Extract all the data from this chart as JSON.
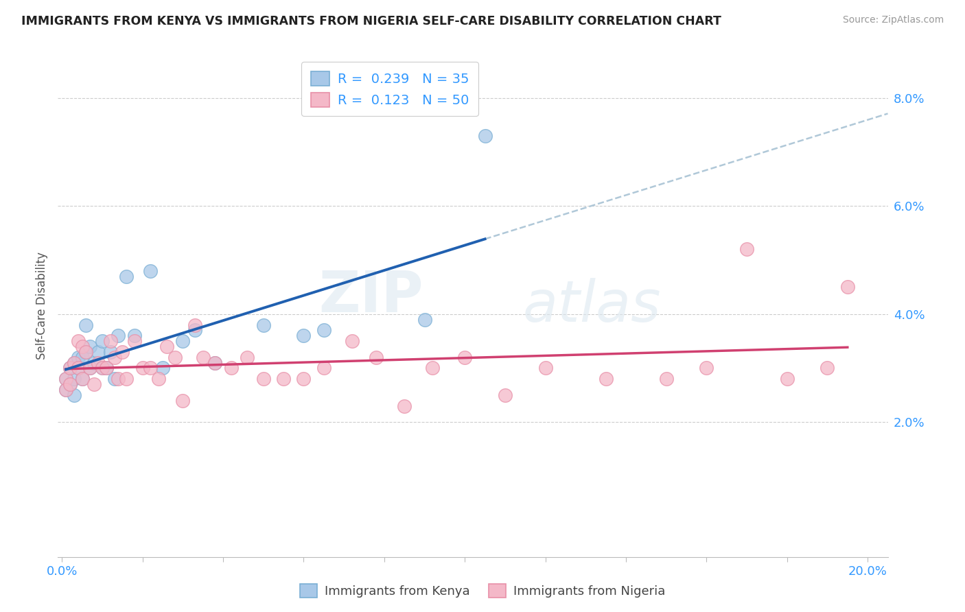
{
  "title": "IMMIGRANTS FROM KENYA VS IMMIGRANTS FROM NIGERIA SELF-CARE DISABILITY CORRELATION CHART",
  "source": "Source: ZipAtlas.com",
  "ylabel": "Self-Care Disability",
  "kenya_color": "#a8c8e8",
  "nigeria_color": "#f4b8c8",
  "kenya_edge_color": "#7aafd4",
  "nigeria_edge_color": "#e890a8",
  "kenya_line_color": "#2060b0",
  "nigeria_line_color": "#d04070",
  "dash_color": "#b0c8d8",
  "kenya_R": 0.239,
  "kenya_N": 35,
  "nigeria_R": 0.123,
  "nigeria_N": 50,
  "xlim": [
    -0.001,
    0.205
  ],
  "ylim": [
    -0.005,
    0.088
  ],
  "yticks": [
    0.0,
    0.02,
    0.04,
    0.06,
    0.08
  ],
  "ytick_labels": [
    "",
    "2.0%",
    "4.0%",
    "6.0%",
    "8.0%"
  ],
  "xtick_labels": [
    "0.0%",
    "",
    "",
    "",
    "",
    "",
    "",
    "",
    "",
    "",
    "20.0%"
  ],
  "background_color": "#ffffff",
  "grid_color": "#cccccc",
  "watermark_zip": "ZIP",
  "watermark_atlas": "atlas",
  "kenya_x": [
    0.001,
    0.001,
    0.002,
    0.002,
    0.003,
    0.003,
    0.003,
    0.004,
    0.004,
    0.005,
    0.005,
    0.006,
    0.006,
    0.007,
    0.007,
    0.008,
    0.009,
    0.01,
    0.01,
    0.011,
    0.012,
    0.013,
    0.014,
    0.016,
    0.018,
    0.022,
    0.025,
    0.03,
    0.033,
    0.038,
    0.05,
    0.06,
    0.065,
    0.09,
    0.105
  ],
  "kenya_y": [
    0.028,
    0.026,
    0.03,
    0.027,
    0.031,
    0.028,
    0.025,
    0.03,
    0.032,
    0.032,
    0.028,
    0.033,
    0.038,
    0.034,
    0.03,
    0.031,
    0.033,
    0.03,
    0.035,
    0.03,
    0.033,
    0.028,
    0.036,
    0.047,
    0.036,
    0.048,
    0.03,
    0.035,
    0.037,
    0.031,
    0.038,
    0.036,
    0.037,
    0.039,
    0.073
  ],
  "nigeria_x": [
    0.001,
    0.001,
    0.002,
    0.002,
    0.003,
    0.004,
    0.004,
    0.005,
    0.005,
    0.006,
    0.007,
    0.008,
    0.009,
    0.01,
    0.011,
    0.012,
    0.013,
    0.014,
    0.015,
    0.016,
    0.018,
    0.02,
    0.022,
    0.024,
    0.026,
    0.028,
    0.03,
    0.033,
    0.035,
    0.038,
    0.042,
    0.046,
    0.05,
    0.055,
    0.06,
    0.065,
    0.072,
    0.078,
    0.085,
    0.092,
    0.1,
    0.11,
    0.12,
    0.135,
    0.15,
    0.16,
    0.17,
    0.18,
    0.19,
    0.195
  ],
  "nigeria_y": [
    0.028,
    0.026,
    0.03,
    0.027,
    0.031,
    0.03,
    0.035,
    0.028,
    0.034,
    0.033,
    0.03,
    0.027,
    0.031,
    0.03,
    0.03,
    0.035,
    0.032,
    0.028,
    0.033,
    0.028,
    0.035,
    0.03,
    0.03,
    0.028,
    0.034,
    0.032,
    0.024,
    0.038,
    0.032,
    0.031,
    0.03,
    0.032,
    0.028,
    0.028,
    0.028,
    0.03,
    0.035,
    0.032,
    0.023,
    0.03,
    0.032,
    0.025,
    0.03,
    0.028,
    0.028,
    0.03,
    0.052,
    0.028,
    0.03,
    0.045
  ],
  "marker_size": 0.004,
  "legend_r_color": "#000000",
  "legend_n_color": "#2080cc",
  "title_fontsize": 12.5,
  "axis_fontsize": 13,
  "legend_fontsize": 14
}
